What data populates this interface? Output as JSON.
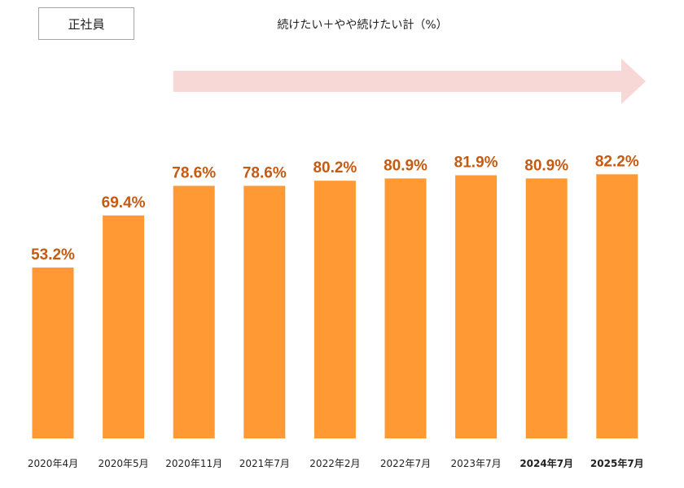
{
  "badge": {
    "label": "正社員"
  },
  "header": {
    "subtitle": "続けたい＋やや続けたい計（%）"
  },
  "colors": {
    "bar": "#FF9933",
    "data_label": "#C55A11",
    "arrow": "#F8D7D7",
    "axis_text": "#222222",
    "badge_border": "#A6A6A6"
  },
  "chart_data": {
    "type": "bar",
    "title": "",
    "xlabel": "",
    "ylabel": "",
    "ylim": [
      0,
      100
    ],
    "grid": false,
    "legend": "none",
    "categories": [
      "2020年4月",
      "2020年5月",
      "2020年11月",
      "2021年7月",
      "2022年2月",
      "2022年7月",
      "2023年7月",
      "2024年7月",
      "2025年7月"
    ],
    "bold_categories": [
      "2024年7月",
      "2025年7月"
    ],
    "values": [
      53.2,
      69.4,
      78.6,
      78.6,
      80.2,
      80.9,
      81.9,
      80.9,
      82.2
    ],
    "data_labels": [
      "53.2%",
      "69.4%",
      "78.6%",
      "78.6%",
      "80.2%",
      "80.9%",
      "81.9%",
      "80.9%",
      "82.2%"
    ],
    "annotations": [
      {
        "type": "trend-arrow",
        "direction": "right",
        "from_category": "2020年11月",
        "to_category": "2025年7月"
      }
    ]
  }
}
